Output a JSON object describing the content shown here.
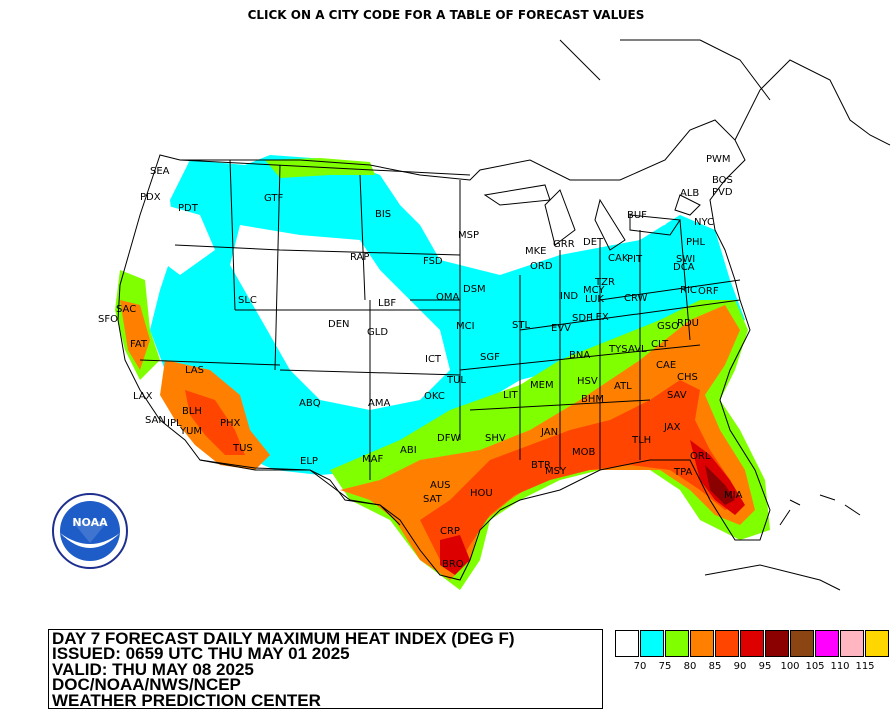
{
  "top_note": "CLICK ON A CITY CODE FOR A TABLE OF FORECAST VALUES",
  "legend": {
    "line1": "DAY 7 FORECAST DAILY MAXIMUM HEAT INDEX (DEG F)",
    "line2": "ISSUED: 0659 UTC THU MAY 01 2025",
    "line3": "VALID: THU MAY 08 2025",
    "line4": "DOC/NOAA/NWS/NCEP",
    "line5": "WEATHER PREDICTION CENTER"
  },
  "logo_text": "NOAA",
  "color_scale": [
    {
      "label": "70",
      "color": "#ffffff"
    },
    {
      "label": "75",
      "color": "#00ffff"
    },
    {
      "label": "80",
      "color": "#7fff00"
    },
    {
      "label": "85",
      "color": "#ff8000"
    },
    {
      "label": "90",
      "color": "#ff4500"
    },
    {
      "label": "95",
      "color": "#dd0000"
    },
    {
      "label": "100",
      "color": "#8b0000"
    },
    {
      "label": "105",
      "color": "#8b4513"
    },
    {
      "label": "110",
      "color": "#ff00ff"
    },
    {
      "label": "115",
      "color": "#ffb6c1"
    },
    {
      "label": "",
      "color": "#ffd700"
    }
  ],
  "cities": [
    "SEA",
    "PDX",
    "PDT",
    "GTF",
    "BIS",
    "MSP",
    "FSD",
    "RAP",
    "SAC",
    "SFO",
    "SLC",
    "DEN",
    "LBF",
    "OMA",
    "DSM",
    "GLD",
    "MKE",
    "GRR",
    "DET",
    "ORD",
    "BUF",
    "ALB",
    "PWM",
    "BOS",
    "PVD",
    "NYC",
    "PHL",
    "CAK",
    "PIT",
    "DCA",
    "SWI",
    "RIC",
    "ORF",
    "IND",
    "MCY",
    "TZR",
    "LUK",
    "LEX",
    "CRW",
    "SDF",
    "EVV",
    "STL",
    "MCI",
    "ICT",
    "SGF",
    "TUL",
    "OKC",
    "FAT",
    "LAS",
    "LAX",
    "SAN",
    "IPL",
    "YUM",
    "BLH",
    "PHX",
    "TUS",
    "ABQ",
    "AMA",
    "ELP",
    "MAF",
    "ABI",
    "DFW",
    "SHV",
    "LIT",
    "MEM",
    "BNA",
    "TYS",
    "AVL",
    "CLT",
    "GSO",
    "RDU",
    "CAE",
    "CHS",
    "SAV",
    "ATL",
    "HSV",
    "BHM",
    "JAN",
    "BTR",
    "MSY",
    "MOB",
    "TLH",
    "JAX",
    "ORL",
    "TPA",
    "MIA",
    "AUS",
    "SAT",
    "HOU",
    "CRP",
    "BRO"
  ]
}
